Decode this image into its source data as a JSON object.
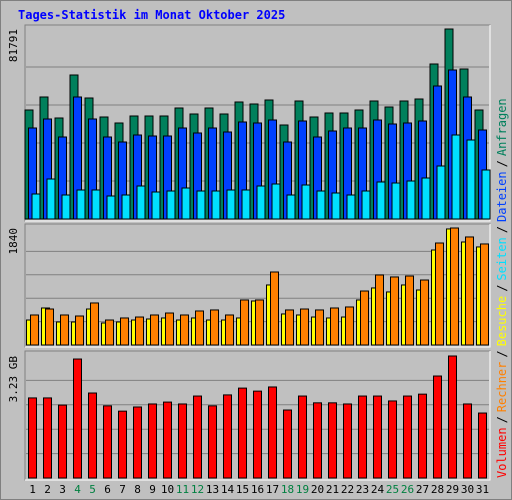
{
  "title": "Tages-Statistik im Monat Oktober 2025",
  "legend_separator": "/",
  "chart_data": [
    {
      "type": "bar",
      "ylim": [
        0,
        81791
      ],
      "yticks": [
        81791
      ],
      "series": [
        {
          "name": "Anfragen",
          "color": "#00805c",
          "values": [
            46925,
            52521,
            43481,
            61992,
            52091,
            43911,
            41328,
            44342,
            44342,
            44342,
            47786,
            45203,
            47786,
            45203,
            50369,
            49508,
            51230,
            40467,
            50799,
            43911,
            45633,
            45633,
            46925,
            50799,
            48216,
            50799,
            51660,
            66728,
            81791,
            64575,
            46925
          ]
        },
        {
          "name": "Dateien",
          "color": "#0040ff",
          "values": [
            39176,
            43050,
            35301,
            52521,
            43050,
            35301,
            33149,
            36162,
            35732,
            35732,
            39176,
            37023,
            39176,
            37454,
            41759,
            41328,
            42620,
            33149,
            42189,
            35301,
            37884,
            39176,
            39176,
            42620,
            40898,
            41328,
            42189,
            57257,
            64145,
            52521,
            38315
          ]
        },
        {
          "name": "Seiten",
          "color": "#00e0ff",
          "values": [
            10763,
            17220,
            10332,
            12485,
            12485,
            9902,
            10332,
            14207,
            11624,
            12054,
            13346,
            12054,
            12054,
            12485,
            12485,
            14207,
            15068,
            10332,
            14637,
            12054,
            11193,
            10332,
            12054,
            15929,
            15498,
            16359,
            17651,
            22817,
            36162,
            34010,
            21095
          ]
        }
      ]
    },
    {
      "type": "bar",
      "ylim": [
        0,
        1840
      ],
      "yticks": [
        1840
      ],
      "series": [
        {
          "name": "Besuche",
          "color": "#ffff00",
          "values": [
            393,
            582,
            362,
            362,
            566,
            346,
            362,
            393,
            409,
            425,
            393,
            425,
            393,
            393,
            425,
            692,
            944,
            488,
            472,
            440,
            425,
            440,
            708,
            897,
            834,
            944,
            865,
            1494,
            1825,
            1620,
            1542
          ]
        },
        {
          "name": "Rechner",
          "color": "#ff8000",
          "values": [
            472,
            566,
            472,
            456,
            661,
            393,
            425,
            440,
            472,
            503,
            472,
            535,
            551,
            472,
            708,
            708,
            1148,
            551,
            566,
            551,
            582,
            598,
            849,
            1101,
            1070,
            1085,
            1022,
            1604,
            1840,
            1699,
            1589
          ]
        }
      ]
    },
    {
      "type": "bar",
      "ylim": [
        0,
        3.23
      ],
      "yticks": [
        {
          "value": 3.23,
          "label": "3.23 GB"
        }
      ],
      "categories": [
        "1",
        "2",
        "3",
        "4",
        "5",
        "6",
        "7",
        "8",
        "9",
        "10",
        "11",
        "12",
        "13",
        "14",
        "15",
        "16",
        "17",
        "18",
        "19",
        "20",
        "21",
        "22",
        "23",
        "24",
        "25",
        "26",
        "27",
        "28",
        "29",
        "30",
        "31"
      ],
      "category_colors": [
        "#000000",
        "#000000",
        "#000000",
        "#008040",
        "#008040",
        "#000000",
        "#000000",
        "#000000",
        "#000000",
        "#000000",
        "#008040",
        "#008040",
        "#000000",
        "#000000",
        "#000000",
        "#000000",
        "#000000",
        "#008040",
        "#008040",
        "#000000",
        "#000000",
        "#000000",
        "#000000",
        "#000000",
        "#008040",
        "#008040",
        "#000000",
        "#000000",
        "#000000",
        "#000000",
        "#000000"
      ],
      "series": [
        {
          "name": "Volumen",
          "color": "#ff0000",
          "values": [
            2.12,
            2.12,
            1.93,
            3.15,
            2.25,
            1.91,
            1.77,
            1.88,
            1.96,
            2.01,
            1.96,
            2.17,
            1.91,
            2.2,
            2.38,
            2.3,
            2.41,
            1.8,
            2.17,
            1.99,
            1.99,
            1.96,
            2.17,
            2.17,
            2.04,
            2.17,
            2.22,
            2.7,
            3.23,
            1.96,
            1.72
          ]
        }
      ]
    }
  ]
}
